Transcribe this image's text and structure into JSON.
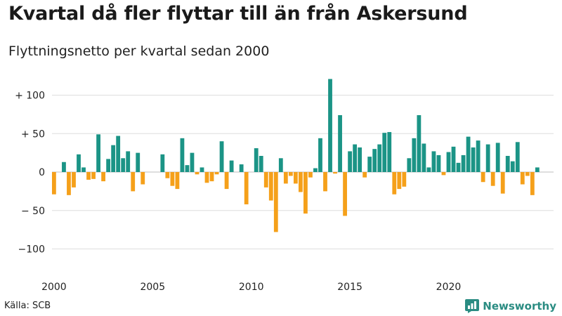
{
  "header": {
    "title": "Kvartal då fler flyttar till än från Askersund",
    "subtitle": "Flyttningsnetto per kvartal sedan 2000"
  },
  "footer": {
    "source": "Källa: SCB",
    "brand": "Newsworthy"
  },
  "colors": {
    "positive": "#1b9486",
    "negative": "#f5a01a",
    "grid": "#dedede",
    "brand": "#2a8c82"
  },
  "chart_data": {
    "type": "bar",
    "title": "Kvartal då fler flyttar till än från Askersund",
    "subtitle": "Flyttningsnetto per kvartal sedan 2000",
    "xlabel": "",
    "ylabel": "",
    "ylim": [
      -110,
      125
    ],
    "yticks": [
      100,
      50,
      0,
      -50,
      -100
    ],
    "ytick_labels": [
      "+ 100",
      "+  50",
      "0",
      "− 50",
      "−100"
    ],
    "xticks": [
      2000,
      2005,
      2010,
      2015,
      2020
    ],
    "start_year": 2000,
    "grid": true,
    "values": [
      -29,
      0,
      13,
      -30,
      -20,
      23,
      6,
      -10,
      -9,
      49,
      -12,
      17,
      35,
      47,
      18,
      27,
      -25,
      25,
      -16,
      0,
      0,
      0,
      23,
      -8,
      -18,
      -22,
      44,
      9,
      25,
      -3,
      6,
      -14,
      -12,
      -3,
      40,
      -22,
      15,
      0,
      10,
      -42,
      0,
      31,
      21,
      -20,
      -37,
      -78,
      18,
      -15,
      -5,
      -15,
      -26,
      -54,
      -7,
      5,
      44,
      -25,
      121,
      -2,
      74,
      -57,
      27,
      36,
      32,
      -7,
      20,
      30,
      36,
      51,
      52,
      -29,
      -22,
      -19,
      18,
      44,
      74,
      37,
      6,
      27,
      22,
      -4,
      26,
      33,
      12,
      22,
      46,
      32,
      41,
      -13,
      36,
      -18,
      38,
      -28,
      21,
      14,
      39,
      -16,
      -5,
      -30,
      6
    ]
  }
}
